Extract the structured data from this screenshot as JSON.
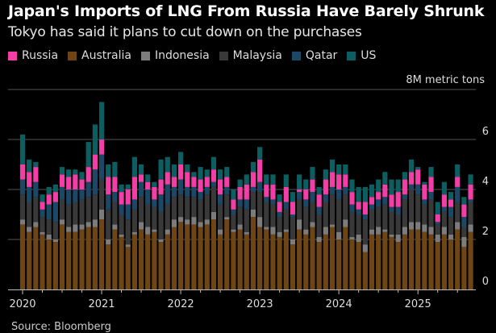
{
  "chart_data": {
    "type": "bar",
    "stacked": true,
    "title": "Japan's Imports of LNG From Russia Have Barely Shrunk",
    "subtitle": "Tokyo has said it plans to cut down on the purchases",
    "unit_label": "8M metric tons",
    "source": "Source: Bloomberg",
    "ylim": [
      0,
      8
    ],
    "yticks": [
      "0",
      "2",
      "4",
      "6"
    ],
    "xticks": [
      "2020",
      "2021",
      "2022",
      "2023",
      "2024",
      "2025"
    ],
    "x_start": "2020-01",
    "months": 69,
    "legend": [
      "Russia",
      "Australia",
      "Indonesia",
      "Malaysia",
      "Qatar",
      "US"
    ],
    "colors": {
      "Russia": "#f23ea6",
      "Australia": "#6e4515",
      "Indonesia": "#7c7c7c",
      "Malaysia": "#393939",
      "Qatar": "#1c4866",
      "US": "#0d5e61"
    },
    "stack_order": [
      "Australia",
      "Indonesia",
      "Malaysia",
      "Qatar",
      "Russia",
      "US"
    ],
    "series": [
      {
        "name": "Australia",
        "values": [
          2.6,
          2.3,
          2.5,
          2.2,
          2.0,
          1.9,
          2.6,
          2.3,
          2.3,
          2.4,
          2.5,
          2.5,
          2.8,
          1.8,
          2.4,
          2.1,
          1.7,
          2.2,
          2.4,
          2.2,
          2.3,
          1.9,
          2.2,
          2.5,
          2.7,
          2.6,
          2.6,
          2.5,
          2.6,
          2.8,
          2.2,
          2.8,
          2.3,
          2.4,
          2.2,
          2.9,
          2.5,
          2.4,
          2.2,
          2.1,
          2.3,
          1.8,
          2.4,
          2.2,
          2.5,
          1.9,
          2.2,
          2.5,
          2.0,
          2.5,
          2.0,
          1.9,
          1.5,
          2.2,
          2.2,
          2.3,
          2.1,
          1.9,
          2.2,
          2.4,
          2.4,
          2.3,
          2.2,
          1.9,
          2.2,
          2.0,
          2.4,
          1.7,
          2.3
        ]
      },
      {
        "name": "Indonesia",
        "values": [
          0.2,
          0.2,
          0.2,
          0.1,
          0.2,
          0.1,
          0.2,
          0.2,
          0.3,
          0.2,
          0.2,
          0.3,
          0.4,
          0.2,
          0.2,
          0.1,
          0.1,
          0.1,
          0.3,
          0.3,
          0.1,
          0.1,
          0.2,
          0.3,
          0.2,
          0.2,
          0.3,
          0.2,
          0.2,
          0.3,
          0.2,
          0.1,
          0.1,
          0.2,
          0.1,
          0.3,
          0.4,
          0.1,
          0.3,
          0.2,
          0.1,
          0.2,
          0.4,
          0.2,
          0.2,
          0.2,
          0.3,
          0.1,
          0.3,
          0.3,
          0.1,
          0.3,
          0.3,
          0.2,
          0.3,
          0.1,
          0.1,
          0.3,
          0.3,
          0.3,
          0.3,
          0.3,
          0.3,
          0.3,
          0.3,
          0.2,
          0.3,
          0.4,
          0.3
        ]
      },
      {
        "name": "Malaysia",
        "values": [
          1.0,
          1.0,
          1.0,
          0.6,
          0.6,
          0.7,
          0.8,
          0.9,
          0.9,
          1.0,
          1.0,
          1.0,
          1.2,
          1.2,
          0.9,
          0.8,
          1.0,
          0.9,
          1.0,
          0.9,
          0.9,
          1.1,
          1.0,
          0.9,
          0.9,
          0.9,
          0.8,
          0.9,
          1.0,
          1.0,
          1.0,
          0.9,
          0.6,
          0.7,
          0.9,
          0.7,
          1.0,
          1.0,
          0.9,
          0.6,
          0.8,
          0.9,
          0.8,
          0.9,
          0.8,
          0.9,
          1.0,
          1.2,
          1.3,
          1.0,
          1.0,
          0.8,
          1.0,
          0.8,
          0.8,
          1.0,
          0.9,
          0.8,
          1.1,
          1.3,
          1.1,
          0.8,
          1.1,
          0.4,
          0.6,
          0.7,
          0.8,
          0.4,
          0.9
        ]
      },
      {
        "name": "Qatar",
        "values": [
          0.6,
          0.6,
          0.6,
          0.3,
          0.6,
          0.8,
          0.5,
          0.6,
          0.5,
          0.4,
          0.6,
          1.0,
          1.0,
          0.6,
          0.4,
          0.4,
          0.6,
          0.4,
          0.6,
          0.6,
          0.3,
          0.7,
          0.8,
          0.4,
          0.6,
          0.4,
          0.4,
          0.3,
          0.3,
          0.2,
          0.4,
          0.3,
          0.2,
          0.3,
          0.4,
          0.2,
          0.4,
          0.2,
          0.2,
          0.2,
          0.3,
          0.1,
          0.3,
          0.3,
          0.4,
          0.3,
          0.3,
          0.3,
          0.4,
          0.3,
          0.3,
          0.2,
          0.2,
          0.2,
          0.3,
          0.3,
          0.2,
          0.3,
          0.2,
          0.2,
          0.4,
          0.2,
          0.3,
          0.1,
          0.2,
          0.4,
          0.6,
          0.4,
          0.1
        ]
      },
      {
        "name": "Russia",
        "values": [
          0.6,
          0.6,
          0.6,
          0.3,
          0.4,
          0.4,
          0.5,
          0.5,
          0.6,
          0.4,
          0.6,
          0.6,
          0.6,
          0.7,
          0.6,
          0.5,
          0.6,
          0.9,
          0.3,
          0.3,
          0.5,
          0.6,
          0.5,
          0.4,
          0.6,
          0.6,
          0.4,
          0.5,
          0.4,
          0.5,
          0.6,
          0.4,
          0.4,
          0.5,
          0.6,
          0.6,
          0.9,
          0.5,
          0.6,
          0.4,
          0.6,
          0.5,
          0.1,
          0.4,
          0.5,
          0.5,
          0.6,
          0.6,
          0.6,
          0.5,
          0.5,
          0.3,
          0.5,
          0.3,
          0.3,
          0.5,
          0.5,
          0.6,
          0.6,
          0.5,
          0.6,
          0.6,
          0.6,
          0.3,
          0.5,
          0.3,
          0.4,
          0.5,
          0.6
        ]
      },
      {
        "name": "US",
        "values": [
          1.2,
          0.5,
          0.2,
          0.3,
          0.3,
          0.3,
          0.3,
          0.3,
          0.2,
          0.3,
          1.0,
          1.2,
          1.5,
          0.5,
          0.6,
          0.3,
          0.2,
          0.8,
          0.4,
          0.3,
          0.2,
          0.8,
          0.6,
          0.5,
          0.5,
          0.3,
          0.2,
          0.5,
          0.3,
          0.5,
          0.4,
          0.4,
          0.4,
          0.3,
          0.4,
          0.4,
          0.5,
          0.4,
          0.4,
          0.3,
          0.5,
          0.4,
          0.6,
          0.4,
          0.5,
          0.3,
          0.4,
          0.5,
          0.4,
          0.4,
          0.5,
          0.6,
          0.6,
          0.5,
          0.5,
          0.5,
          0.6,
          0.5,
          0.3,
          0.5,
          0.1,
          0.1,
          0.4,
          0.5,
          0.5,
          0.3,
          0.5,
          0.3,
          0.4
        ]
      }
    ]
  }
}
